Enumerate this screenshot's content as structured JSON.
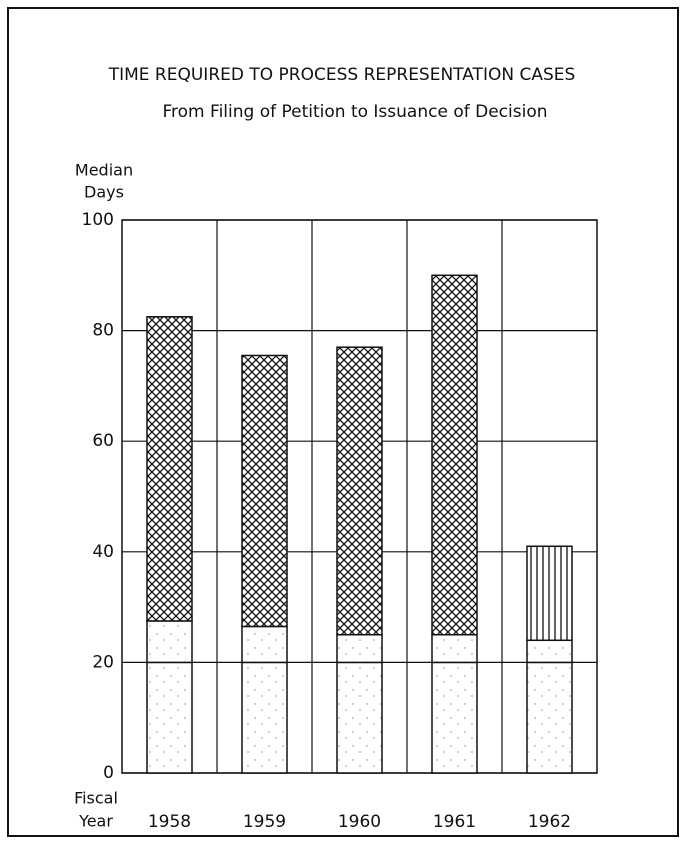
{
  "chart_data": {
    "type": "stacked_bar",
    "title": "TIME REQUIRED TO PROCESS REPRESENTATION CASES",
    "subtitle": "From Filing of Petition to Issuance of Decision",
    "ylabel": [
      "Median",
      "Days"
    ],
    "xlabel": [
      "Fiscal",
      "Year"
    ],
    "categories": [
      "1958",
      "1959",
      "1960",
      "1961",
      "1962"
    ],
    "series": [
      {
        "pattern": "dots",
        "color": "#111111",
        "values": [
          20,
          20,
          20,
          20,
          20
        ]
      },
      {
        "pattern": "dots",
        "color": "#111111",
        "values": [
          7.5,
          6.5,
          5,
          5,
          4
        ]
      },
      {
        "pattern": "crosshatch",
        "color": "#111111",
        "values": [
          55,
          49,
          52,
          65,
          null
        ]
      },
      {
        "pattern": "vertical",
        "color": "#111111",
        "values": [
          null,
          null,
          null,
          null,
          17
        ]
      }
    ],
    "ylim": [
      0,
      100
    ],
    "yticks": [
      0,
      20,
      40,
      60,
      80,
      100
    ],
    "grid": true
  }
}
